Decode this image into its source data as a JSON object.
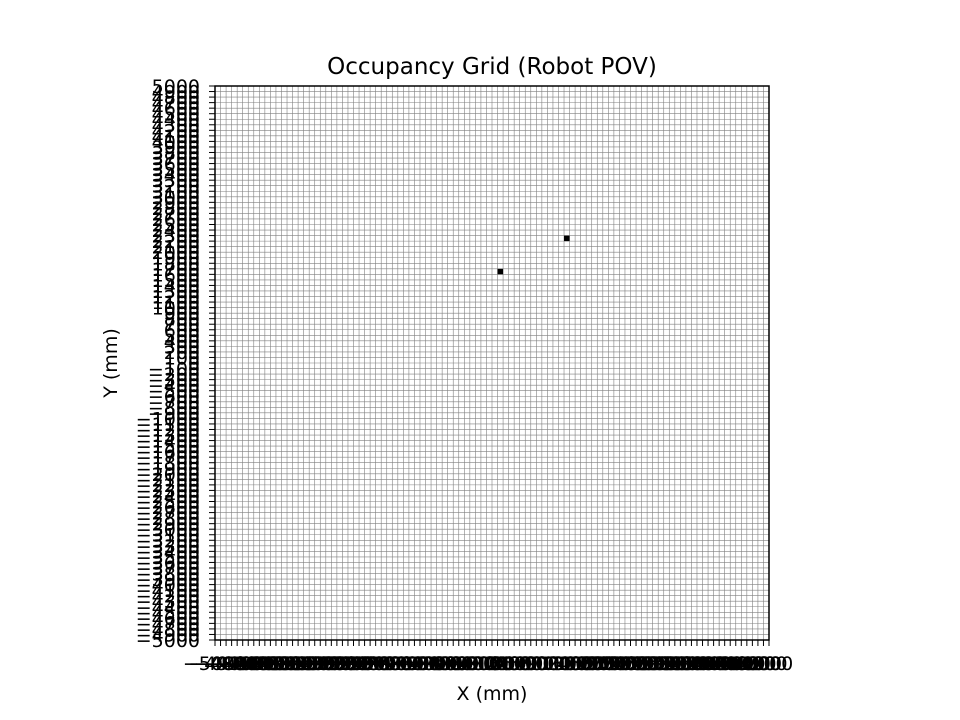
{
  "chart_data": {
    "type": "heatmap",
    "title": "Occupancy Grid (Robot POV)",
    "xlabel": "X (mm)",
    "ylabel": "Y (mm)",
    "xlim": [
      -5000,
      5000
    ],
    "ylim": [
      -5000,
      5000
    ],
    "cell_size_mm": 100,
    "grid": true,
    "x_ticks": [
      -5000,
      -4900,
      -4800,
      -4700,
      -4600,
      -4500,
      -4400,
      -4300,
      -4200,
      -4100,
      -4000,
      -3900,
      -3800,
      -3700,
      -3600,
      -3500,
      -3400,
      -3300,
      -3200,
      -3100,
      -3000,
      -2900,
      -2800,
      -2700,
      -2600,
      -2500,
      -2400,
      -2300,
      -2200,
      -2100,
      -2000,
      -1900,
      -1800,
      -1700,
      -1600,
      -1500,
      -1400,
      -1300,
      -1200,
      -1100,
      -1000,
      -900,
      -800,
      -700,
      -600,
      -500,
      -400,
      -300,
      -200,
      -100,
      0,
      100,
      200,
      300,
      400,
      500,
      600,
      700,
      800,
      900,
      1000,
      1100,
      1200,
      1300,
      1400,
      1500,
      1600,
      1700,
      1800,
      1900,
      2000,
      2100,
      2200,
      2300,
      2400,
      2500,
      2600,
      2700,
      2800,
      2900,
      3000,
      3100,
      3200,
      3300,
      3400,
      3500,
      3600,
      3700,
      3800,
      3900,
      4000,
      4100,
      4200,
      4300,
      4400,
      4500,
      4600,
      4700,
      4800,
      4900,
      5000
    ],
    "y_ticks": [
      -5000,
      -4900,
      -4800,
      -4700,
      -4600,
      -4500,
      -4400,
      -4300,
      -4200,
      -4100,
      -4000,
      -3900,
      -3800,
      -3700,
      -3600,
      -3500,
      -3400,
      -3300,
      -3200,
      -3100,
      -3000,
      -2900,
      -2800,
      -2700,
      -2600,
      -2500,
      -2400,
      -2300,
      -2200,
      -2100,
      -2000,
      -1900,
      -1800,
      -1700,
      -1600,
      -1500,
      -1400,
      -1300,
      -1200,
      -1100,
      -1000,
      -900,
      -800,
      -700,
      -600,
      -500,
      -400,
      -300,
      -200,
      -100,
      0,
      100,
      200,
      300,
      400,
      500,
      600,
      700,
      800,
      900,
      1000,
      1100,
      1200,
      1300,
      1400,
      1500,
      1600,
      1700,
      1800,
      1900,
      2000,
      2100,
      2200,
      2300,
      2400,
      2500,
      2600,
      2700,
      2800,
      2900,
      3000,
      3100,
      3200,
      3300,
      3400,
      3500,
      3600,
      3700,
      3800,
      3900,
      4000,
      4100,
      4200,
      4300,
      4400,
      4500,
      4600,
      4700,
      4800,
      4900,
      5000
    ],
    "occupied_cells": [
      {
        "x": 100,
        "y": 1600
      },
      {
        "x": 1300,
        "y": 2200
      }
    ]
  },
  "colors": {
    "background": "#ffffff",
    "grid_line": "#808080",
    "occupied": "#000000",
    "axis": "#000000"
  }
}
